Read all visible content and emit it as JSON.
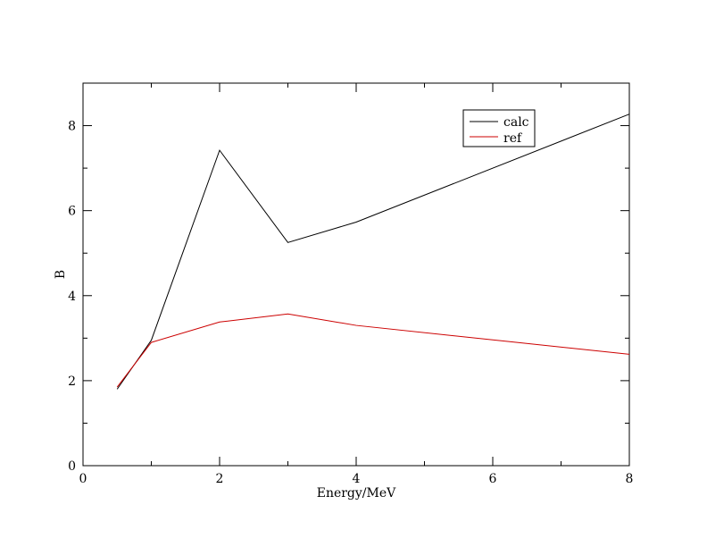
{
  "chart_data": {
    "type": "line",
    "xlabel": "Energy/MeV",
    "ylabel": "B",
    "xlim": [
      0,
      8
    ],
    "ylim": [
      0,
      9
    ],
    "xticks": [
      0,
      2,
      4,
      6,
      8
    ],
    "yticks": [
      0,
      2,
      4,
      6,
      8
    ],
    "grid": false,
    "legend_position": "top-right",
    "series": [
      {
        "name": "calc",
        "color": "#000000",
        "x": [
          0.5,
          1,
          2,
          3,
          4,
          8
        ],
        "y": [
          1.8,
          2.95,
          7.42,
          5.25,
          5.73,
          8.27
        ]
      },
      {
        "name": "ref",
        "color": "#cc0000",
        "x": [
          0.5,
          1,
          2,
          3,
          4,
          8
        ],
        "y": [
          1.85,
          2.9,
          3.38,
          3.57,
          3.3,
          2.62
        ]
      }
    ]
  }
}
